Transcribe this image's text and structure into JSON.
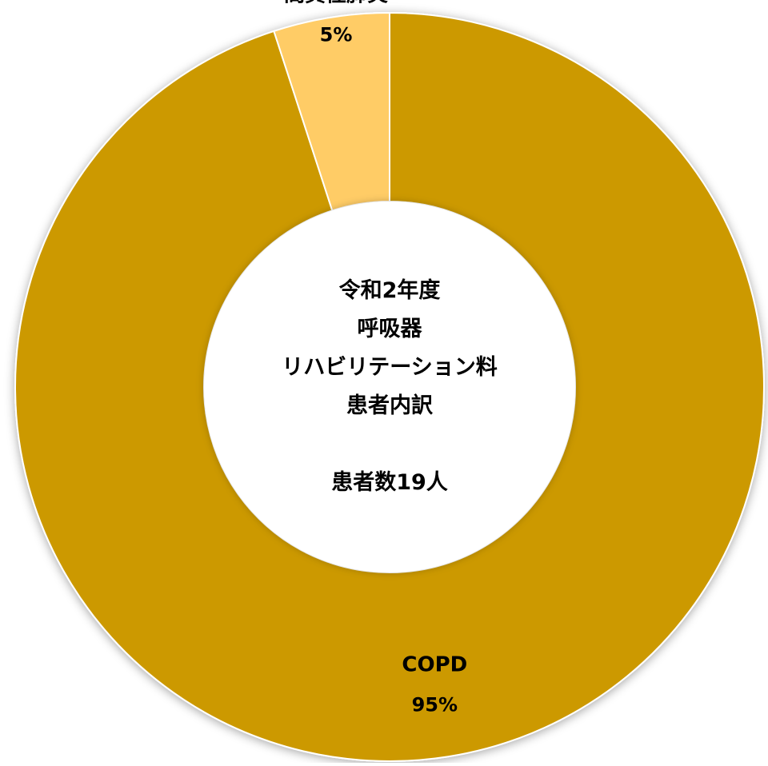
{
  "chart_data": {
    "type": "pie",
    "donut": true,
    "center_text": [
      "令和2年度",
      "呼吸器",
      "リハビリテーション料",
      "患者内訳",
      "",
      "患者数19人"
    ],
    "slices": [
      {
        "label": "COPD",
        "value": 95,
        "value_label": "95%",
        "color": "#CC9900"
      },
      {
        "label": "間質性肺炎",
        "value": 5,
        "value_label": "5%",
        "color": "#FFCC66"
      }
    ]
  }
}
